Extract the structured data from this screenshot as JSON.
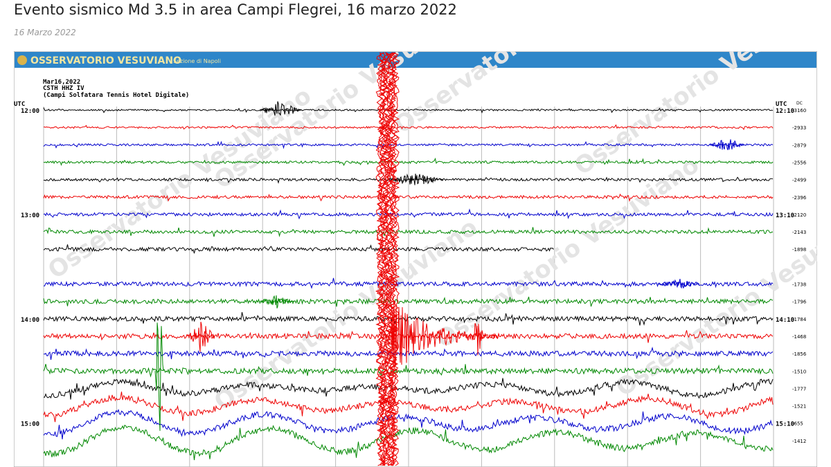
{
  "header": {
    "title": "Evento sismico Md 3.5 in area Campi Flegrei, 16 marzo 2022",
    "date": "16 Marzo 2022"
  },
  "seismogram": {
    "observatory": "OSSERVATORIO VESUVIANO",
    "section": "Sezione di Napoli",
    "date": "Mar16,2022",
    "station": "CSTH HHZ IV",
    "station_name": "(Campi Solfatara Tennis Hotel Digitale)",
    "utc_label": "UTC",
    "dc_label": "DC",
    "left_times": [
      "12:00",
      "13:00",
      "14:00",
      "15:00"
    ],
    "right_times": [
      "12:10",
      "13:10",
      "14:10",
      "15:10"
    ],
    "dc_values": [
      "-3160",
      "-2933",
      "-2879",
      "-2556",
      "-2499",
      "-2396",
      "-2120",
      "-2143",
      "-1898",
      null,
      "-1738",
      "-1796",
      "-1784",
      "-1468",
      "-1856",
      "-1510",
      "-1777",
      "-1521",
      "-655",
      "-1412"
    ],
    "watermark": "Osservatorio Vesuviano"
  }
}
